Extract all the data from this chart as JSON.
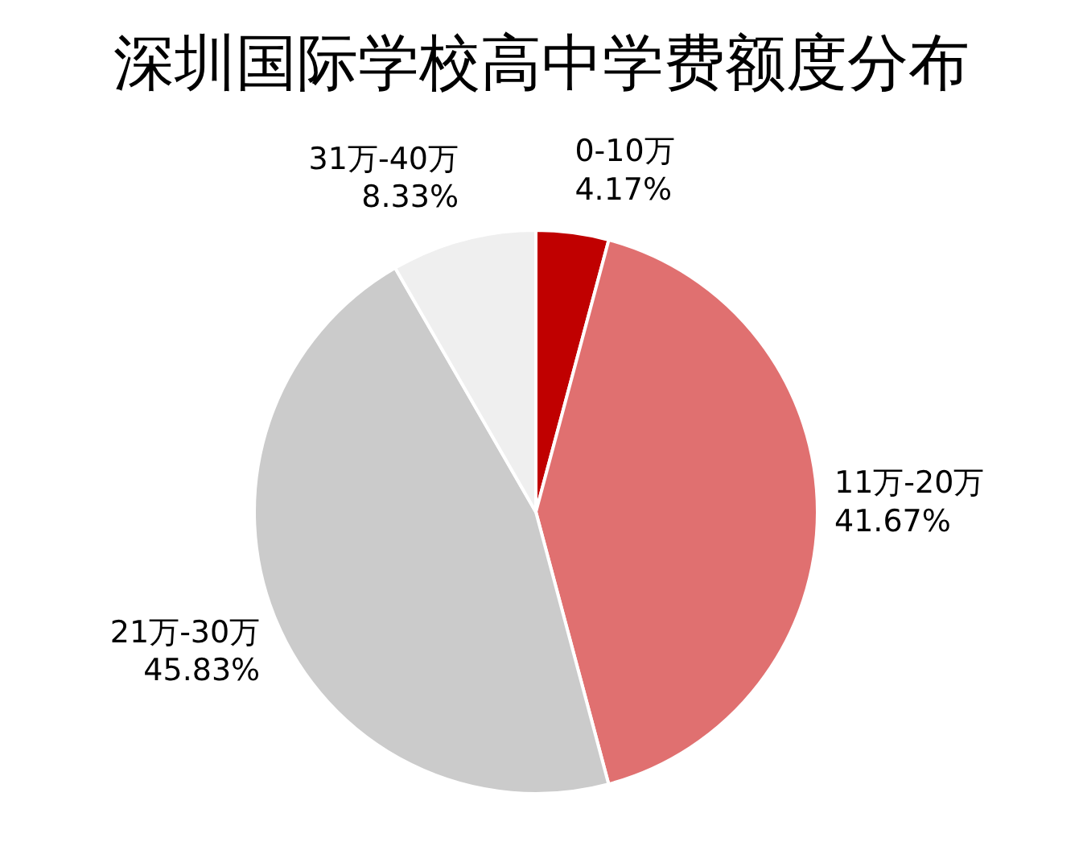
{
  "chart_data": {
    "type": "pie",
    "title": "深圳国际学校高中学费额度分布",
    "categories": [
      "0-10万",
      "11万-20万",
      "21万-30万",
      "31万-40万"
    ],
    "values": [
      4.17,
      41.67,
      45.83,
      8.33
    ],
    "value_labels": [
      "4.17%",
      "41.67%",
      "45.83%",
      "8.33%"
    ],
    "colors": [
      "#c00000",
      "#e07070",
      "#cbcbcb",
      "#efefef"
    ]
  }
}
